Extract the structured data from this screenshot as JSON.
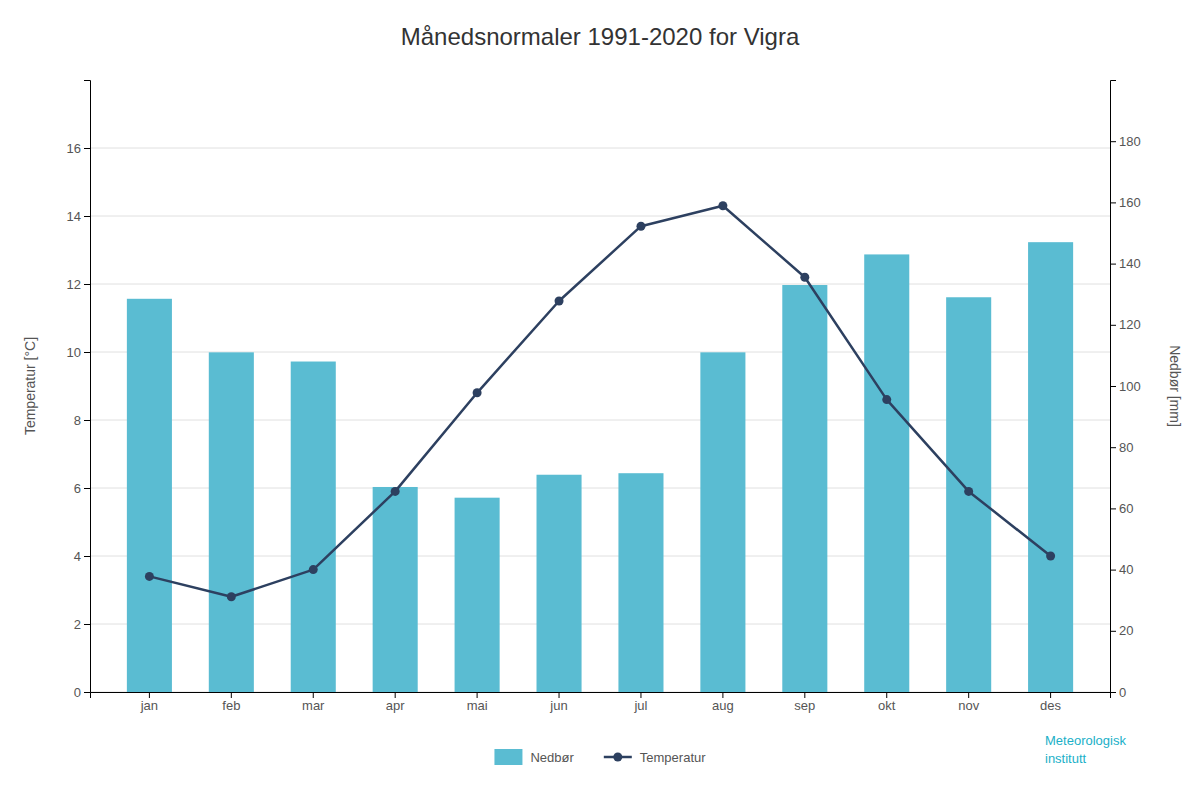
{
  "chart_data": {
    "type": "bar",
    "title": "Månedsnormaler 1991-2020 for Vigra",
    "categories": [
      "jan",
      "feb",
      "mar",
      "apr",
      "mai",
      "jun",
      "jul",
      "aug",
      "sep",
      "okt",
      "nov",
      "des"
    ],
    "series": [
      {
        "name": "Nedbør",
        "type": "bar",
        "color": "#5abcd2",
        "axis": "y2",
        "values": [
          128.5,
          111.0,
          108.0,
          67.0,
          63.5,
          71.0,
          71.5,
          111.0,
          133.0,
          143.0,
          129.0,
          147.0
        ]
      },
      {
        "name": "Temperatur",
        "type": "line",
        "color": "#2d4060",
        "marker": "circle",
        "values": [
          3.4,
          2.8,
          3.6,
          5.9,
          8.8,
          11.5,
          13.7,
          14.3,
          12.2,
          8.6,
          5.9,
          4.0
        ]
      }
    ],
    "ylabel": "Temperatur [°C]",
    "y2label": "Nedbør [mm]",
    "ylim": [
      0,
      18
    ],
    "yticks": [
      0,
      2,
      4,
      6,
      8,
      10,
      12,
      14,
      16
    ],
    "y2lim": [
      0,
      200
    ],
    "y2ticks": [
      0,
      20,
      40,
      60,
      80,
      100,
      120,
      140,
      160,
      180
    ],
    "grid": true,
    "legend": "bottom",
    "annotations": [
      "Meteorologisk\ninstitutt"
    ]
  }
}
